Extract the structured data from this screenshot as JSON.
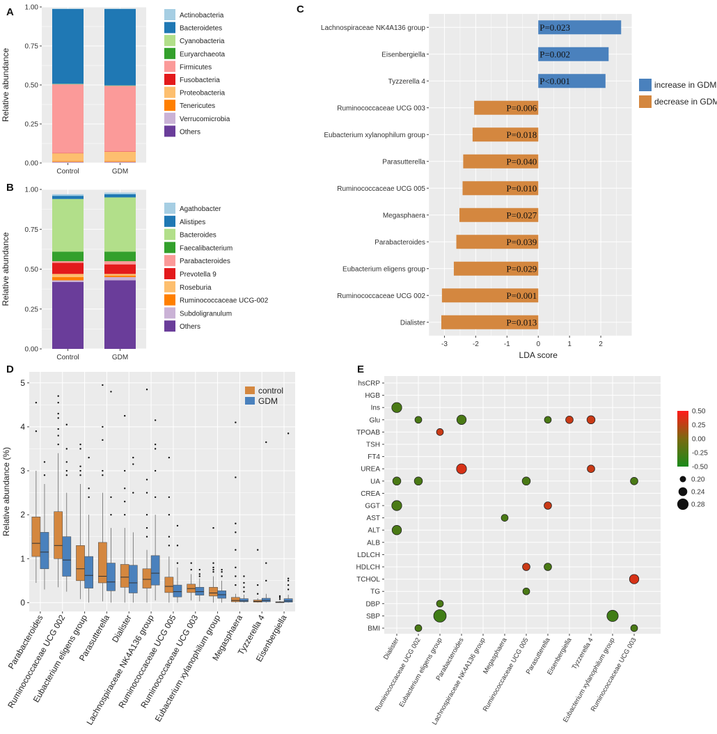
{
  "chart_data": [
    {
      "panel": "A",
      "type": "stacked-bar",
      "ylabel": "Relative abundance",
      "ylim": [
        0,
        1
      ],
      "yticks": [
        "0.00",
        "0.25",
        "0.50",
        "0.75",
        "1.00"
      ],
      "categories": [
        "Control",
        "GDM"
      ],
      "series": [
        {
          "name": "Actinobacteria",
          "color": "#a6cee3",
          "values": [
            0.003,
            0.003
          ]
        },
        {
          "name": "Bacteroidetes",
          "color": "#1f78b4",
          "values": [
            0.48,
            0.49
          ]
        },
        {
          "name": "Cyanobacteria",
          "color": "#b2df8a",
          "values": [
            0.002,
            0.002
          ]
        },
        {
          "name": "Euryarchaeota",
          "color": "#33a02c",
          "values": [
            0.001,
            0.001
          ]
        },
        {
          "name": "Firmicutes",
          "color": "#fb9a99",
          "values": [
            0.44,
            0.42
          ]
        },
        {
          "name": "Fusobacteria",
          "color": "#e31a1c",
          "values": [
            0.002,
            0.002
          ]
        },
        {
          "name": "Proteobacteria",
          "color": "#fdbf6f",
          "values": [
            0.05,
            0.06
          ]
        },
        {
          "name": "Tenericutes",
          "color": "#ff7f00",
          "values": [
            0.005,
            0.005
          ]
        },
        {
          "name": "Verrucomicrobia",
          "color": "#cab2d6",
          "values": [
            0.007,
            0.007
          ]
        },
        {
          "name": "Others",
          "color": "#6a3d9a",
          "values": [
            0.0,
            0.0
          ]
        }
      ]
    },
    {
      "panel": "B",
      "type": "stacked-bar",
      "ylabel": "Relative abundance",
      "ylim": [
        0,
        1
      ],
      "yticks": [
        "0.00",
        "0.25",
        "0.50",
        "0.75",
        "1.00"
      ],
      "categories": [
        "Control",
        "GDM"
      ],
      "series": [
        {
          "name": "Agathobacter",
          "color": "#a6cee3",
          "values": [
            0.01,
            0.01
          ]
        },
        {
          "name": "Alistipes",
          "color": "#1f78b4",
          "values": [
            0.02,
            0.02
          ]
        },
        {
          "name": "Bacteroides",
          "color": "#b2df8a",
          "values": [
            0.33,
            0.34
          ]
        },
        {
          "name": "Faecalibacterium",
          "color": "#33a02c",
          "values": [
            0.06,
            0.06
          ]
        },
        {
          "name": "Parabacteroides",
          "color": "#fb9a99",
          "values": [
            0.01,
            0.02
          ]
        },
        {
          "name": "Prevotella 9",
          "color": "#e31a1c",
          "values": [
            0.07,
            0.06
          ]
        },
        {
          "name": "Roseburia",
          "color": "#fdbf6f",
          "values": [
            0.02,
            0.01
          ]
        },
        {
          "name": "Ruminococcaceae UCG-002",
          "color": "#ff7f00",
          "values": [
            0.02,
            0.01
          ]
        },
        {
          "name": "Subdoligranulum",
          "color": "#cab2d6",
          "values": [
            0.01,
            0.02
          ]
        },
        {
          "name": "Others",
          "color": "#6a3d9a",
          "values": [
            0.42,
            0.43
          ]
        }
      ]
    },
    {
      "panel": "C",
      "type": "bar",
      "orientation": "horizontal",
      "xlabel": "LDA score",
      "xlim": [
        -3.5,
        3
      ],
      "xticks": [
        -3,
        -2,
        -1,
        0,
        1,
        2
      ],
      "legend": [
        {
          "name": "increase in GDM",
          "color": "#4a81bd"
        },
        {
          "name": "decrease in GDM",
          "color": "#d4873f"
        }
      ],
      "bars": [
        {
          "label": "Lachnospiraceae NK4A136 group",
          "value": 2.65,
          "p": "P=0.023",
          "group": "increase in GDM"
        },
        {
          "label": "Eisenbergiella",
          "value": 2.25,
          "p": "P=0.002",
          "group": "increase in GDM"
        },
        {
          "label": "Tyzzerella 4",
          "value": 2.15,
          "p": "P<0.001",
          "group": "increase in GDM"
        },
        {
          "label": "Ruminococcaceae UCG 003",
          "value": -2.05,
          "p": "P=0.006",
          "group": "decrease in GDM"
        },
        {
          "label": "Eubacterium xylanophilum group",
          "value": -2.1,
          "p": "P=0.018",
          "group": "decrease in GDM"
        },
        {
          "label": "Parasutterella",
          "value": -2.4,
          "p": "P=0.040",
          "group": "decrease in GDM"
        },
        {
          "label": "Ruminococcaceae UCG 005",
          "value": -2.42,
          "p": "P=0.010",
          "group": "decrease in GDM"
        },
        {
          "label": "Megasphaera",
          "value": -2.52,
          "p": "P=0.027",
          "group": "decrease in GDM"
        },
        {
          "label": "Parabacteroides",
          "value": -2.62,
          "p": "P=0.039",
          "group": "decrease in GDM"
        },
        {
          "label": "Eubacterium eligens group",
          "value": -2.7,
          "p": "P=0.029",
          "group": "decrease in GDM"
        },
        {
          "label": "Ruminococcaceae UCG 002",
          "value": -3.08,
          "p": "P=0.001",
          "group": "decrease in GDM"
        },
        {
          "label": "Dialister",
          "value": -3.1,
          "p": "P=0.013",
          "group": "decrease in GDM"
        }
      ]
    },
    {
      "panel": "D",
      "type": "boxplot",
      "ylabel": "Relative abundance (%)",
      "ylim": [
        0,
        5
      ],
      "yticks": [
        0,
        1,
        2,
        3,
        4,
        5
      ],
      "legend": [
        {
          "name": "control",
          "color": "#d4873f"
        },
        {
          "name": "GDM",
          "color": "#4a81bd"
        }
      ],
      "categories": [
        "Parabacteroides",
        "Ruminococcaceae UCG 002",
        "Eubacterium eligens group",
        "Parasutterella",
        "Dialister",
        "Lachnospiraceae NK4A136 group",
        "Ruminococcaceae UCG 005",
        "Ruminococcaceae UCG 003",
        "Eubacterium xylanophilum group",
        "Megasphaera",
        "Tyzzerella 4",
        "Eisenbergiella"
      ],
      "series": [
        {
          "name": "control",
          "boxes": [
            {
              "q1": 1.05,
              "med": 1.35,
              "q3": 1.95,
              "lo": 0.45,
              "hi": 3.0,
              "out": [
                3.9,
                4.55
              ]
            },
            {
              "q1": 1.0,
              "med": 1.3,
              "q3": 2.07,
              "lo": 0.35,
              "hi": 3.4,
              "out": [
                3.6,
                3.8,
                3.95,
                4.2,
                4.3,
                4.55,
                4.7
              ]
            },
            {
              "q1": 0.5,
              "med": 0.77,
              "q3": 1.3,
              "lo": 0.08,
              "hi": 2.7,
              "out": [
                2.9,
                3.0,
                3.1,
                3.5,
                3.6
              ]
            },
            {
              "q1": 0.45,
              "med": 0.6,
              "q3": 1.37,
              "lo": 0.03,
              "hi": 2.5,
              "out": [
                2.9,
                3.0,
                3.7,
                4.0,
                4.95
              ]
            },
            {
              "q1": 0.35,
              "med": 0.58,
              "q3": 0.87,
              "lo": 0.0,
              "hi": 1.7,
              "out": [
                2.0,
                2.3,
                2.6,
                3.0,
                4.25
              ]
            },
            {
              "q1": 0.33,
              "med": 0.53,
              "q3": 0.77,
              "lo": 0.0,
              "hi": 1.2,
              "out": [
                1.5,
                1.7,
                2.0,
                2.5,
                2.8,
                4.85
              ]
            },
            {
              "q1": 0.23,
              "med": 0.37,
              "q3": 0.58,
              "lo": 0.0,
              "hi": 1.05,
              "out": [
                1.3,
                1.5,
                2.0,
                2.4,
                3.3
              ]
            },
            {
              "q1": 0.23,
              "med": 0.32,
              "q3": 0.42,
              "lo": 0.05,
              "hi": 0.65,
              "out": [
                0.75,
                0.9
              ]
            },
            {
              "q1": 0.15,
              "med": 0.22,
              "q3": 0.35,
              "lo": 0.0,
              "hi": 0.6,
              "out": [
                0.7,
                0.75,
                0.8,
                0.9,
                1.7
              ]
            },
            {
              "q1": 0.02,
              "med": 0.05,
              "q3": 0.12,
              "lo": 0.0,
              "hi": 0.2,
              "out": [
                0.4,
                0.6,
                0.8,
                1.2,
                1.6,
                1.8,
                2.85,
                4.1
              ]
            },
            {
              "q1": 0.01,
              "med": 0.03,
              "q3": 0.06,
              "lo": 0.0,
              "hi": 0.1,
              "out": [
                0.2,
                0.4,
                1.2
              ]
            },
            {
              "q1": 0.0,
              "med": 0.01,
              "q3": 0.02,
              "lo": 0.0,
              "hi": 0.04,
              "out": [
                0.08,
                0.12,
                0.15
              ]
            }
          ]
        },
        {
          "name": "GDM",
          "boxes": [
            {
              "q1": 0.77,
              "med": 1.15,
              "q3": 1.6,
              "lo": 0.3,
              "hi": 2.7,
              "out": [
                2.9,
                3.2
              ]
            },
            {
              "q1": 0.6,
              "med": 0.97,
              "q3": 1.5,
              "lo": 0.25,
              "hi": 2.5,
              "out": [
                2.9,
                3.0,
                3.2,
                3.5,
                4.05
              ]
            },
            {
              "q1": 0.33,
              "med": 0.62,
              "q3": 1.05,
              "lo": 0.0,
              "hi": 2.0,
              "out": [
                2.4,
                2.6,
                3.3
              ]
            },
            {
              "q1": 0.27,
              "med": 0.47,
              "q3": 0.9,
              "lo": 0.0,
              "hi": 1.7,
              "out": [
                2.0,
                2.4,
                4.8
              ]
            },
            {
              "q1": 0.22,
              "med": 0.45,
              "q3": 0.85,
              "lo": 0.0,
              "hi": 1.6,
              "out": [
                2.5,
                3.15,
                3.3
              ]
            },
            {
              "q1": 0.4,
              "med": 0.67,
              "q3": 1.07,
              "lo": 0.05,
              "hi": 2.0,
              "out": [
                2.4,
                3.0,
                3.5,
                3.6,
                4.15
              ]
            },
            {
              "q1": 0.13,
              "med": 0.25,
              "q3": 0.4,
              "lo": 0.0,
              "hi": 0.8,
              "out": [
                0.9,
                1.3,
                1.75
              ]
            },
            {
              "q1": 0.17,
              "med": 0.25,
              "q3": 0.35,
              "lo": 0.03,
              "hi": 0.55,
              "out": [
                0.6,
                0.65,
                0.75
              ]
            },
            {
              "q1": 0.1,
              "med": 0.18,
              "q3": 0.27,
              "lo": 0.0,
              "hi": 0.5,
              "out": [
                0.6,
                0.7,
                0.75
              ]
            },
            {
              "q1": 0.02,
              "med": 0.04,
              "q3": 0.09,
              "lo": 0.0,
              "hi": 0.18,
              "out": [
                0.25,
                0.35,
                0.45,
                0.6
              ]
            },
            {
              "q1": 0.02,
              "med": 0.05,
              "q3": 0.1,
              "lo": 0.0,
              "hi": 0.2,
              "out": [
                0.5,
                0.9,
                3.65
              ]
            },
            {
              "q1": 0.01,
              "med": 0.04,
              "q3": 0.09,
              "lo": 0.0,
              "hi": 0.18,
              "out": [
                0.3,
                0.4,
                0.5,
                0.55,
                3.85
              ]
            }
          ]
        }
      ]
    },
    {
      "panel": "E",
      "type": "scatter",
      "subtype": "bubble-correlation",
      "xcats": [
        "Dialister",
        "Ruminococcaceae UCG 002",
        "Eubacterium eligens group",
        "Parabacteroides",
        "Lachnospiraceae NK4A136 group",
        "Megasphaera",
        "Ruminococcaceae UCG 005",
        "Parasutterella",
        "Eisenbergiella",
        "Tyzzerella 4",
        "Eubacterium xylanophilum group",
        "Ruminococcaceae UCG 003"
      ],
      "ycats": [
        "hsCRP",
        "HGB",
        "Ins",
        "Glu",
        "TPOAB",
        "TSH",
        "FT4",
        "UREA",
        "UA",
        "CREA",
        "GGT",
        "AST",
        "ALT",
        "ALB",
        "LDLCH",
        "HDLCH",
        "TCHOL",
        "TG",
        "DBP",
        "SBP",
        "BMI"
      ],
      "color_legend": {
        "min": -0.5,
        "max": 0.5,
        "ticks": [
          "0.50",
          "0.25",
          "0.00",
          "-0.25",
          "-0.50"
        ],
        "low_color": "#1a8a1a",
        "mid_color": "#7a6a10",
        "high_color": "#ff1a1a"
      },
      "size_legend": {
        "ticks": [
          "0.20",
          "0.24",
          "0.28"
        ],
        "values": [
          0.2,
          0.24,
          0.28
        ]
      },
      "points": [
        {
          "x": "Dialister",
          "y": "Ins",
          "r": -0.25,
          "size": 0.26
        },
        {
          "x": "Dialister",
          "y": "UA",
          "r": -0.25,
          "size": 0.23
        },
        {
          "x": "Dialister",
          "y": "GGT",
          "r": -0.25,
          "size": 0.26
        },
        {
          "x": "Dialister",
          "y": "ALT",
          "r": -0.25,
          "size": 0.25
        },
        {
          "x": "Ruminococcaceae UCG 002",
          "y": "Glu",
          "r": -0.25,
          "size": 0.21
        },
        {
          "x": "Ruminococcaceae UCG 002",
          "y": "UA",
          "r": -0.25,
          "size": 0.23
        },
        {
          "x": "Ruminococcaceae UCG 002",
          "y": "BMI",
          "r": -0.25,
          "size": 0.21
        },
        {
          "x": "Eubacterium eligens group",
          "y": "TPOAB",
          "r": 0.3,
          "size": 0.21
        },
        {
          "x": "Eubacterium eligens group",
          "y": "DBP",
          "r": -0.25,
          "size": 0.21
        },
        {
          "x": "Eubacterium eligens group",
          "y": "SBP",
          "r": -0.3,
          "size": 0.3
        },
        {
          "x": "Parabacteroides",
          "y": "Glu",
          "r": -0.25,
          "size": 0.25
        },
        {
          "x": "Parabacteroides",
          "y": "UREA",
          "r": 0.35,
          "size": 0.26
        },
        {
          "x": "Megasphaera",
          "y": "AST",
          "r": -0.25,
          "size": 0.21
        },
        {
          "x": "Ruminococcaceae UCG 005",
          "y": "UA",
          "r": -0.25,
          "size": 0.23
        },
        {
          "x": "Ruminococcaceae UCG 005",
          "y": "HDLCH",
          "r": 0.3,
          "size": 0.22
        },
        {
          "x": "Ruminococcaceae UCG 005",
          "y": "TG",
          "r": -0.25,
          "size": 0.21
        },
        {
          "x": "Parasutterella",
          "y": "Glu",
          "r": -0.25,
          "size": 0.21
        },
        {
          "x": "Parasutterella",
          "y": "GGT",
          "r": 0.3,
          "size": 0.22
        },
        {
          "x": "Parasutterella",
          "y": "HDLCH",
          "r": -0.25,
          "size": 0.22
        },
        {
          "x": "Eisenbergiella",
          "y": "Glu",
          "r": 0.3,
          "size": 0.22
        },
        {
          "x": "Tyzzerella 4",
          "y": "Glu",
          "r": 0.3,
          "size": 0.23
        },
        {
          "x": "Tyzzerella 4",
          "y": "UREA",
          "r": 0.3,
          "size": 0.22
        },
        {
          "x": "Eubacterium xylanophilum group",
          "y": "SBP",
          "r": -0.3,
          "size": 0.28
        },
        {
          "x": "Ruminococcaceae UCG 003",
          "y": "UA",
          "r": -0.25,
          "size": 0.22
        },
        {
          "x": "Ruminococcaceae UCG 003",
          "y": "TCHOL",
          "r": 0.35,
          "size": 0.25
        },
        {
          "x": "Ruminococcaceae UCG 003",
          "y": "BMI",
          "r": -0.25,
          "size": 0.21
        }
      ]
    }
  ]
}
